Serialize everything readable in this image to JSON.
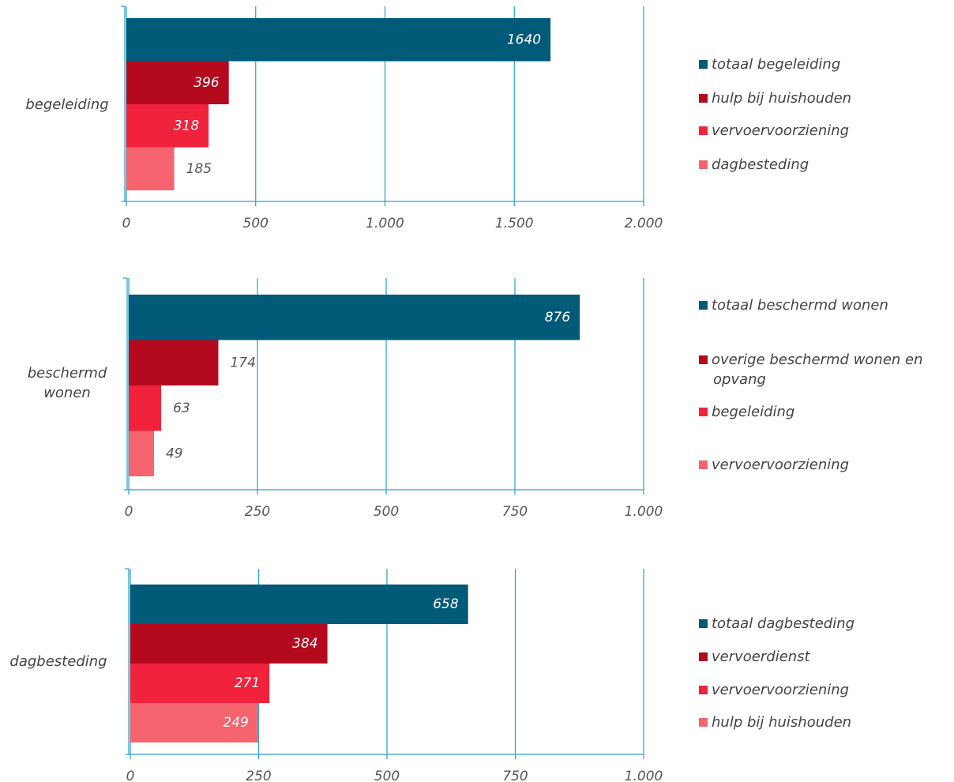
{
  "chart_data": [
    {
      "type": "bar",
      "orientation": "horizontal",
      "categories": [
        "begeleiding"
      ],
      "series": [
        {
          "name": "totaal begeleiding",
          "color": "#005a78",
          "values": [
            1640
          ],
          "label_position": "inside"
        },
        {
          "name": "hulp bij huishouden",
          "color": "#b50a1e",
          "values": [
            396
          ],
          "label_position": "inside"
        },
        {
          "name": "vervoervoorziening",
          "color": "#f0223c",
          "values": [
            318
          ],
          "label_position": "inside"
        },
        {
          "name": "dagbesteding",
          "color": "#f5646e",
          "values": [
            185
          ],
          "label_position": "outside"
        }
      ],
      "xlim": [
        0,
        2000
      ],
      "xticks": [
        0,
        500,
        {
          "value": 1000,
          "label": "1.000"
        },
        {
          "value": 1500,
          "label": "1.500"
        },
        {
          "value": 2000,
          "label": "2.000"
        }
      ],
      "grid": true,
      "legend": "right"
    },
    {
      "type": "bar",
      "orientation": "horizontal",
      "categories": [
        "beschermd wonen"
      ],
      "series": [
        {
          "name": "totaal beschermd wonen",
          "color": "#005a78",
          "values": [
            876
          ],
          "label_position": "inside"
        },
        {
          "name": "overige beschermd wonen en opvang",
          "color": "#b50a1e",
          "values": [
            174
          ],
          "label_position": "outside"
        },
        {
          "name": "begeleiding",
          "color": "#f0223c",
          "values": [
            63
          ],
          "label_position": "outside"
        },
        {
          "name": "vervoervoorziening",
          "color": "#f5646e",
          "values": [
            49
          ],
          "label_position": "outside"
        }
      ],
      "xlim": [
        0,
        1000
      ],
      "xticks": [
        0,
        250,
        500,
        750,
        {
          "value": 1000,
          "label": "1.000"
        }
      ],
      "grid": true,
      "legend": "right"
    },
    {
      "type": "bar",
      "orientation": "horizontal",
      "categories": [
        "dagbesteding"
      ],
      "series": [
        {
          "name": "totaal dagbesteding",
          "color": "#005a78",
          "values": [
            658
          ],
          "label_position": "inside"
        },
        {
          "name": "vervoerdienst",
          "color": "#b50a1e",
          "values": [
            384
          ],
          "label_position": "inside"
        },
        {
          "name": "vervoervoorziening",
          "color": "#f0223c",
          "values": [
            271
          ],
          "label_position": "inside"
        },
        {
          "name": "hulp bij huishouden",
          "color": "#f5646e",
          "values": [
            249
          ],
          "label_position": "inside"
        }
      ],
      "xlim": [
        0,
        1000
      ],
      "xticks": [
        0,
        250,
        500,
        750,
        {
          "value": 1000,
          "label": "1.000"
        }
      ],
      "grid": true,
      "legend": "right"
    }
  ]
}
